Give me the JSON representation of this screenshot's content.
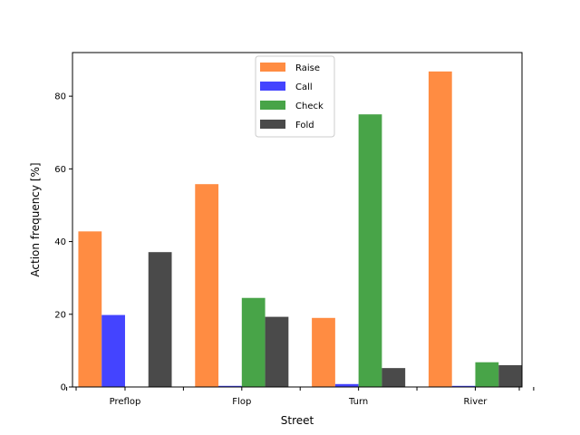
{
  "chart_data": {
    "type": "bar",
    "title": "",
    "xlabel": "Street",
    "ylabel": "Action frequency [%]",
    "categories": [
      "Preflop",
      "Flop",
      "Turn",
      "River"
    ],
    "ylim": [
      0,
      92
    ],
    "yticks": [
      0,
      20,
      40,
      60,
      80
    ],
    "grid": false,
    "legend_position": "upper-center",
    "series": [
      {
        "name": "Raise",
        "color": "#ff8c42",
        "values": [
          42.8,
          55.8,
          19.0,
          86.8
        ]
      },
      {
        "name": "Call",
        "color": "#4444ff",
        "values": [
          19.8,
          0.3,
          0.8,
          0.3
        ]
      },
      {
        "name": "Check",
        "color": "#48a448",
        "values": [
          0.0,
          24.5,
          75.0,
          6.8
        ]
      },
      {
        "name": "Fold",
        "color": "#4a4a4a",
        "values": [
          37.1,
          19.3,
          5.2,
          6.0
        ]
      }
    ]
  }
}
